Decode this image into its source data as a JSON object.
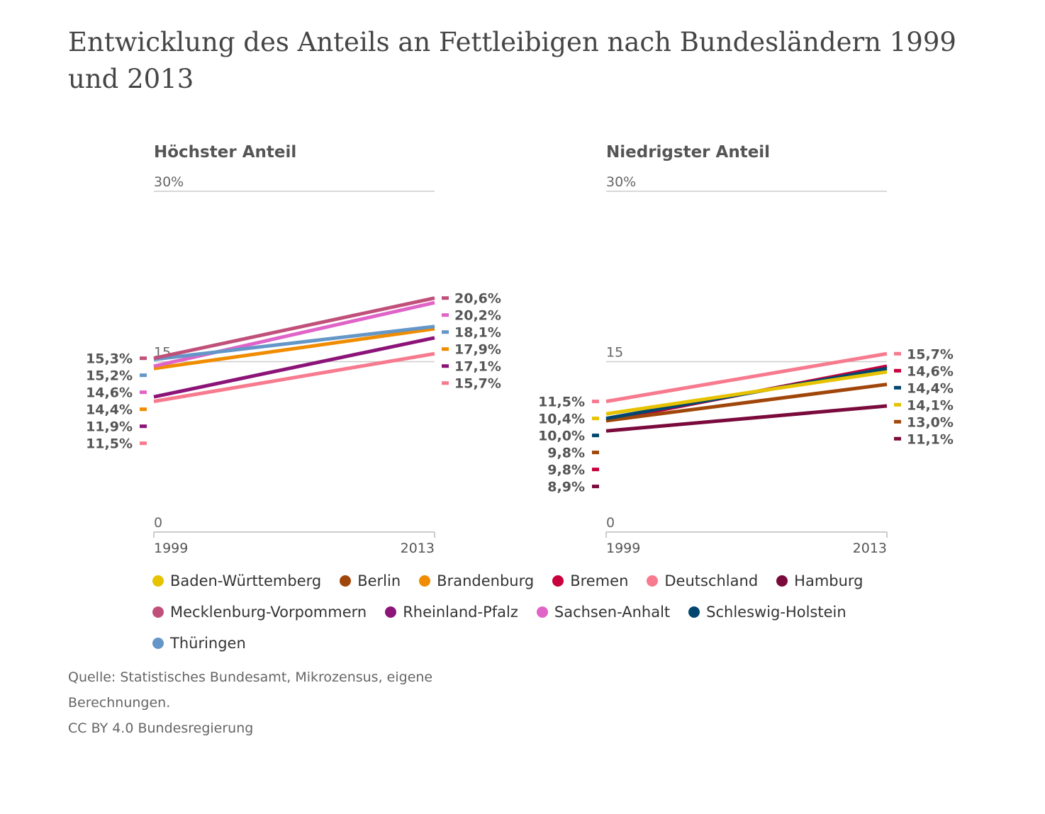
{
  "title": "Entwicklung des Anteils an Fettleibigen nach Bundesländern 1999 und 2013",
  "colors": {
    "Baden-Württemberg": "#e6c200",
    "Berlin": "#a0460a",
    "Brandenburg": "#f08c00",
    "Bremen": "#c8003c",
    "Deutschland": "#f77a8e",
    "Hamburg": "#7a0a3c",
    "Mecklenburg-Vorpommern": "#c0507a",
    "Rheinland-Pfalz": "#8c1478",
    "Sachsen-Anhalt": "#e064c8",
    "Schleswig-Holstein": "#00466e",
    "Thüringen": "#6496c8"
  },
  "chart_data": [
    {
      "type": "line",
      "title": "Höchster Anteil",
      "x": [
        "1999",
        "2013"
      ],
      "ylim": [
        0,
        30
      ],
      "yticks": [
        "0",
        "15",
        "30%"
      ],
      "series": [
        {
          "name": "Mecklenburg-Vorpommern",
          "values": [
            15.3,
            20.6
          ],
          "labels": [
            "15,3%",
            "20,6%"
          ]
        },
        {
          "name": "Thüringen",
          "values": [
            15.2,
            18.1
          ],
          "labels": [
            "15,2%",
            "18,1%"
          ]
        },
        {
          "name": "Sachsen-Anhalt",
          "values": [
            14.6,
            20.2
          ],
          "labels": [
            "14,6%",
            "20,2%"
          ]
        },
        {
          "name": "Brandenburg",
          "values": [
            14.4,
            17.9
          ],
          "labels": [
            "14,4%",
            "17,9%"
          ]
        },
        {
          "name": "Rheinland-Pfalz",
          "values": [
            11.9,
            17.1
          ],
          "labels": [
            "11,9%",
            "17,1%"
          ]
        },
        {
          "name": "Deutschland",
          "values": [
            11.5,
            15.7
          ],
          "labels": [
            "11,5%",
            "15,7%"
          ]
        }
      ]
    },
    {
      "type": "line",
      "title": "Niedrigster Anteil",
      "x": [
        "1999",
        "2013"
      ],
      "ylim": [
        0,
        30
      ],
      "yticks": [
        "0",
        "15",
        "30%"
      ],
      "series": [
        {
          "name": "Deutschland",
          "values": [
            11.5,
            15.7
          ],
          "labels": [
            "11,5%",
            "15,7%"
          ]
        },
        {
          "name": "Baden-Württemberg",
          "values": [
            10.4,
            14.1
          ],
          "labels": [
            "10,4%",
            "14,1%"
          ]
        },
        {
          "name": "Schleswig-Holstein",
          "values": [
            10.0,
            14.4
          ],
          "labels": [
            "10,0%",
            "14,4%"
          ]
        },
        {
          "name": "Berlin",
          "values": [
            9.8,
            13.0
          ],
          "labels": [
            "9,8%",
            "13,0%"
          ]
        },
        {
          "name": "Bremen",
          "values": [
            9.8,
            14.6
          ],
          "labels": [
            "9,8%",
            "14,6%"
          ]
        },
        {
          "name": "Hamburg",
          "values": [
            8.9,
            11.1
          ],
          "labels": [
            "8,9%",
            "11,1%"
          ]
        }
      ]
    }
  ],
  "legend": [
    "Baden-Württemberg",
    "Berlin",
    "Brandenburg",
    "Bremen",
    "Deutschland",
    "Hamburg",
    "Mecklenburg-Vorpommern",
    "Rheinland-Pfalz",
    "Sachsen-Anhalt",
    "Schleswig-Holstein",
    "Thüringen"
  ],
  "source": {
    "line1": "Quelle: Statistisches Bundesamt, Mikrozensus, eigene",
    "line2": "Berechnungen.",
    "line3": "CC BY 4.0 Bundesregierung"
  }
}
